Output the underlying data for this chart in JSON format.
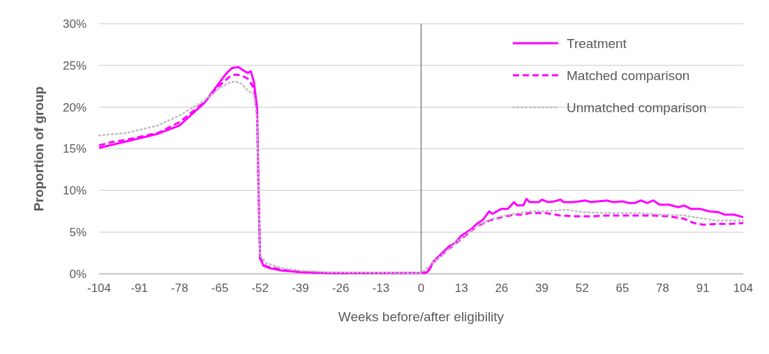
{
  "chart_data": {
    "type": "line",
    "xlabel": "Weeks before/after eligibility",
    "ylabel": "Proportion of group",
    "xlim": [
      -104,
      104
    ],
    "xticks": [
      -104,
      -91,
      -78,
      -65,
      -52,
      -39,
      -26,
      -13,
      0,
      13,
      26,
      39,
      52,
      65,
      78,
      91,
      104
    ],
    "ylim": [
      0,
      30
    ],
    "yticks": [
      {
        "value": 0,
        "label": "0%"
      },
      {
        "value": 5,
        "label": "5%"
      },
      {
        "value": 10,
        "label": "10%"
      },
      {
        "value": 15,
        "label": "15%"
      },
      {
        "value": 20,
        "label": "20%"
      },
      {
        "value": 25,
        "label": "25%"
      },
      {
        "value": 30,
        "label": "30%"
      }
    ],
    "grid": "y",
    "legend": "top right",
    "ref_lines": [
      {
        "axis": "x",
        "value": 0,
        "color": "#7f7f7f"
      }
    ],
    "series": [
      {
        "name": "Treatment",
        "color": "#ff00ff",
        "line_style": "solid",
        "x": [
          -104,
          -95,
          -85,
          -78,
          -70,
          -65,
          -63,
          -61,
          -59,
          -57,
          -56,
          -55,
          -54,
          -53,
          -52.5,
          -52,
          -51,
          -49,
          -45,
          -39,
          -30,
          -10,
          0,
          2,
          4,
          6,
          9,
          11,
          13,
          16,
          18,
          20,
          22,
          23,
          26,
          28,
          30,
          31,
          33,
          34,
          35,
          38,
          39,
          41,
          43,
          45,
          46,
          49,
          51,
          53,
          55,
          57,
          60,
          62,
          65,
          67,
          69,
          71,
          73,
          75,
          77,
          80,
          83,
          85,
          87,
          90,
          93,
          96,
          98,
          101,
          104
        ],
        "values": [
          15.1,
          15.9,
          16.8,
          17.8,
          20.5,
          23.0,
          24.0,
          24.7,
          24.8,
          24.3,
          24.1,
          24.3,
          23.0,
          20.0,
          10,
          2.0,
          1.0,
          0.7,
          0.4,
          0.2,
          0.1,
          0.1,
          0.1,
          0.2,
          1.5,
          2.2,
          3.3,
          3.7,
          4.6,
          5.3,
          6.0,
          6.5,
          7.5,
          7.2,
          7.8,
          7.8,
          8.6,
          8.2,
          8.2,
          9.0,
          8.6,
          8.6,
          8.9,
          8.6,
          8.7,
          8.9,
          8.6,
          8.6,
          8.7,
          8.8,
          8.6,
          8.7,
          8.8,
          8.6,
          8.7,
          8.5,
          8.5,
          8.8,
          8.5,
          8.8,
          8.3,
          8.3,
          8.0,
          8.2,
          7.8,
          7.8,
          7.5,
          7.4,
          7.1,
          7.1,
          6.8
        ]
      },
      {
        "name": "Matched comparison",
        "color": "#ff00ff",
        "line_style": "dashed",
        "x": [
          -104,
          -100,
          -95,
          -85,
          -78,
          -70,
          -65,
          -62,
          -60,
          -58,
          -56,
          -54,
          -53,
          -52.5,
          -52,
          -50,
          -45,
          -39,
          -30,
          0,
          2,
          4,
          9,
          13,
          18,
          22,
          26,
          30,
          33,
          35,
          40,
          45,
          50,
          55,
          60,
          65,
          70,
          75,
          80,
          85,
          88,
          91,
          96,
          100,
          104
        ],
        "values": [
          15.4,
          15.8,
          16.1,
          16.9,
          18.2,
          20.6,
          22.6,
          23.6,
          23.9,
          23.8,
          23.4,
          22.3,
          19.5,
          10,
          1.8,
          0.9,
          0.5,
          0.2,
          0.1,
          0.1,
          0.1,
          1.4,
          3.0,
          4.2,
          5.7,
          6.4,
          6.8,
          7.1,
          7.1,
          7.3,
          7.3,
          7.0,
          6.9,
          6.9,
          7.0,
          7.0,
          7.0,
          7.0,
          6.9,
          6.6,
          6.1,
          5.9,
          6.0,
          6.0,
          6.1
        ]
      },
      {
        "name": "Unmatched comparison",
        "color": "#bfbfbf",
        "line_style": "dotted",
        "x": [
          -104,
          -95,
          -85,
          -78,
          -70,
          -65,
          -62,
          -60,
          -58,
          -56,
          -54,
          -53,
          -52.5,
          -52,
          -50,
          -45,
          -39,
          -30,
          0,
          4,
          9,
          13,
          18,
          22,
          26,
          30,
          35,
          40,
          47,
          52,
          60,
          70,
          78,
          85,
          90,
          95,
          104
        ],
        "values": [
          16.6,
          16.9,
          17.8,
          19.0,
          20.8,
          22.3,
          22.9,
          23.1,
          22.8,
          22.0,
          21.5,
          18.5,
          10,
          2.2,
          1.3,
          0.7,
          0.4,
          0.2,
          0.1,
          1.4,
          3.0,
          4.3,
          5.7,
          6.5,
          6.9,
          7.2,
          7.5,
          7.5,
          7.7,
          7.4,
          7.3,
          7.3,
          7.1,
          7.0,
          6.7,
          6.4,
          6.4
        ]
      }
    ]
  }
}
